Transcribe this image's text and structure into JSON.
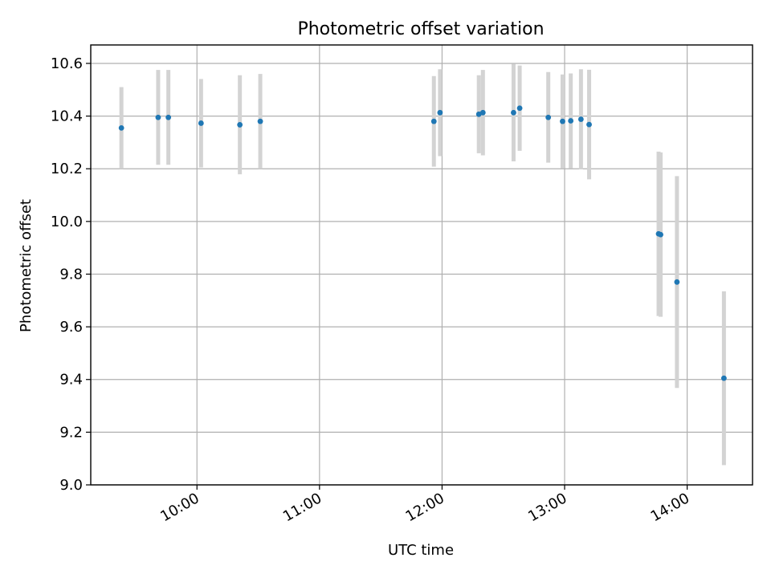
{
  "chart_data": {
    "type": "scatter",
    "title": "Photometric offset variation",
    "xlabel": "UTC time",
    "ylabel": "Photometric offset",
    "xlim": [
      "09:08",
      "14:32"
    ],
    "ylim": [
      9.0,
      10.67
    ],
    "x_ticks": [
      "10:00",
      "11:00",
      "12:00",
      "13:00",
      "14:00"
    ],
    "y_ticks": [
      "9.0",
      "9.2",
      "9.4",
      "9.6",
      "9.8",
      "10.0",
      "10.2",
      "10.4",
      "10.6"
    ],
    "grid": true,
    "colors": {
      "point": "#1f77b4",
      "errorbar": "#d3d3d3"
    },
    "series": [
      {
        "points": [
          {
            "x": "09:23",
            "y": 10.355,
            "err": 0.155
          },
          {
            "x": "09:41",
            "y": 10.395,
            "err": 0.18
          },
          {
            "x": "09:46",
            "y": 10.395,
            "err": 0.18
          },
          {
            "x": "10:02",
            "y": 10.373,
            "err": 0.168
          },
          {
            "x": "10:21",
            "y": 10.367,
            "err": 0.188
          },
          {
            "x": "10:31",
            "y": 10.38,
            "err": 0.18
          },
          {
            "x": "11:56",
            "y": 10.38,
            "err": 0.172
          },
          {
            "x": "11:59",
            "y": 10.413,
            "err": 0.165
          },
          {
            "x": "12:18",
            "y": 10.407,
            "err": 0.148
          },
          {
            "x": "12:20",
            "y": 10.413,
            "err": 0.162
          },
          {
            "x": "12:35",
            "y": 10.413,
            "err": 0.185
          },
          {
            "x": "12:38",
            "y": 10.43,
            "err": 0.162
          },
          {
            "x": "12:52",
            "y": 10.395,
            "err": 0.172
          },
          {
            "x": "12:59",
            "y": 10.38,
            "err": 0.178
          },
          {
            "x": "13:03",
            "y": 10.382,
            "err": 0.18
          },
          {
            "x": "13:08",
            "y": 10.388,
            "err": 0.19
          },
          {
            "x": "13:12",
            "y": 10.368,
            "err": 0.208
          },
          {
            "x": "13:46",
            "y": 9.953,
            "err": 0.312
          },
          {
            "x": "13:47",
            "y": 9.95,
            "err": 0.312
          },
          {
            "x": "13:55",
            "y": 9.77,
            "err": 0.402
          },
          {
            "x": "14:18",
            "y": 9.405,
            "err": 0.33
          }
        ]
      }
    ]
  }
}
